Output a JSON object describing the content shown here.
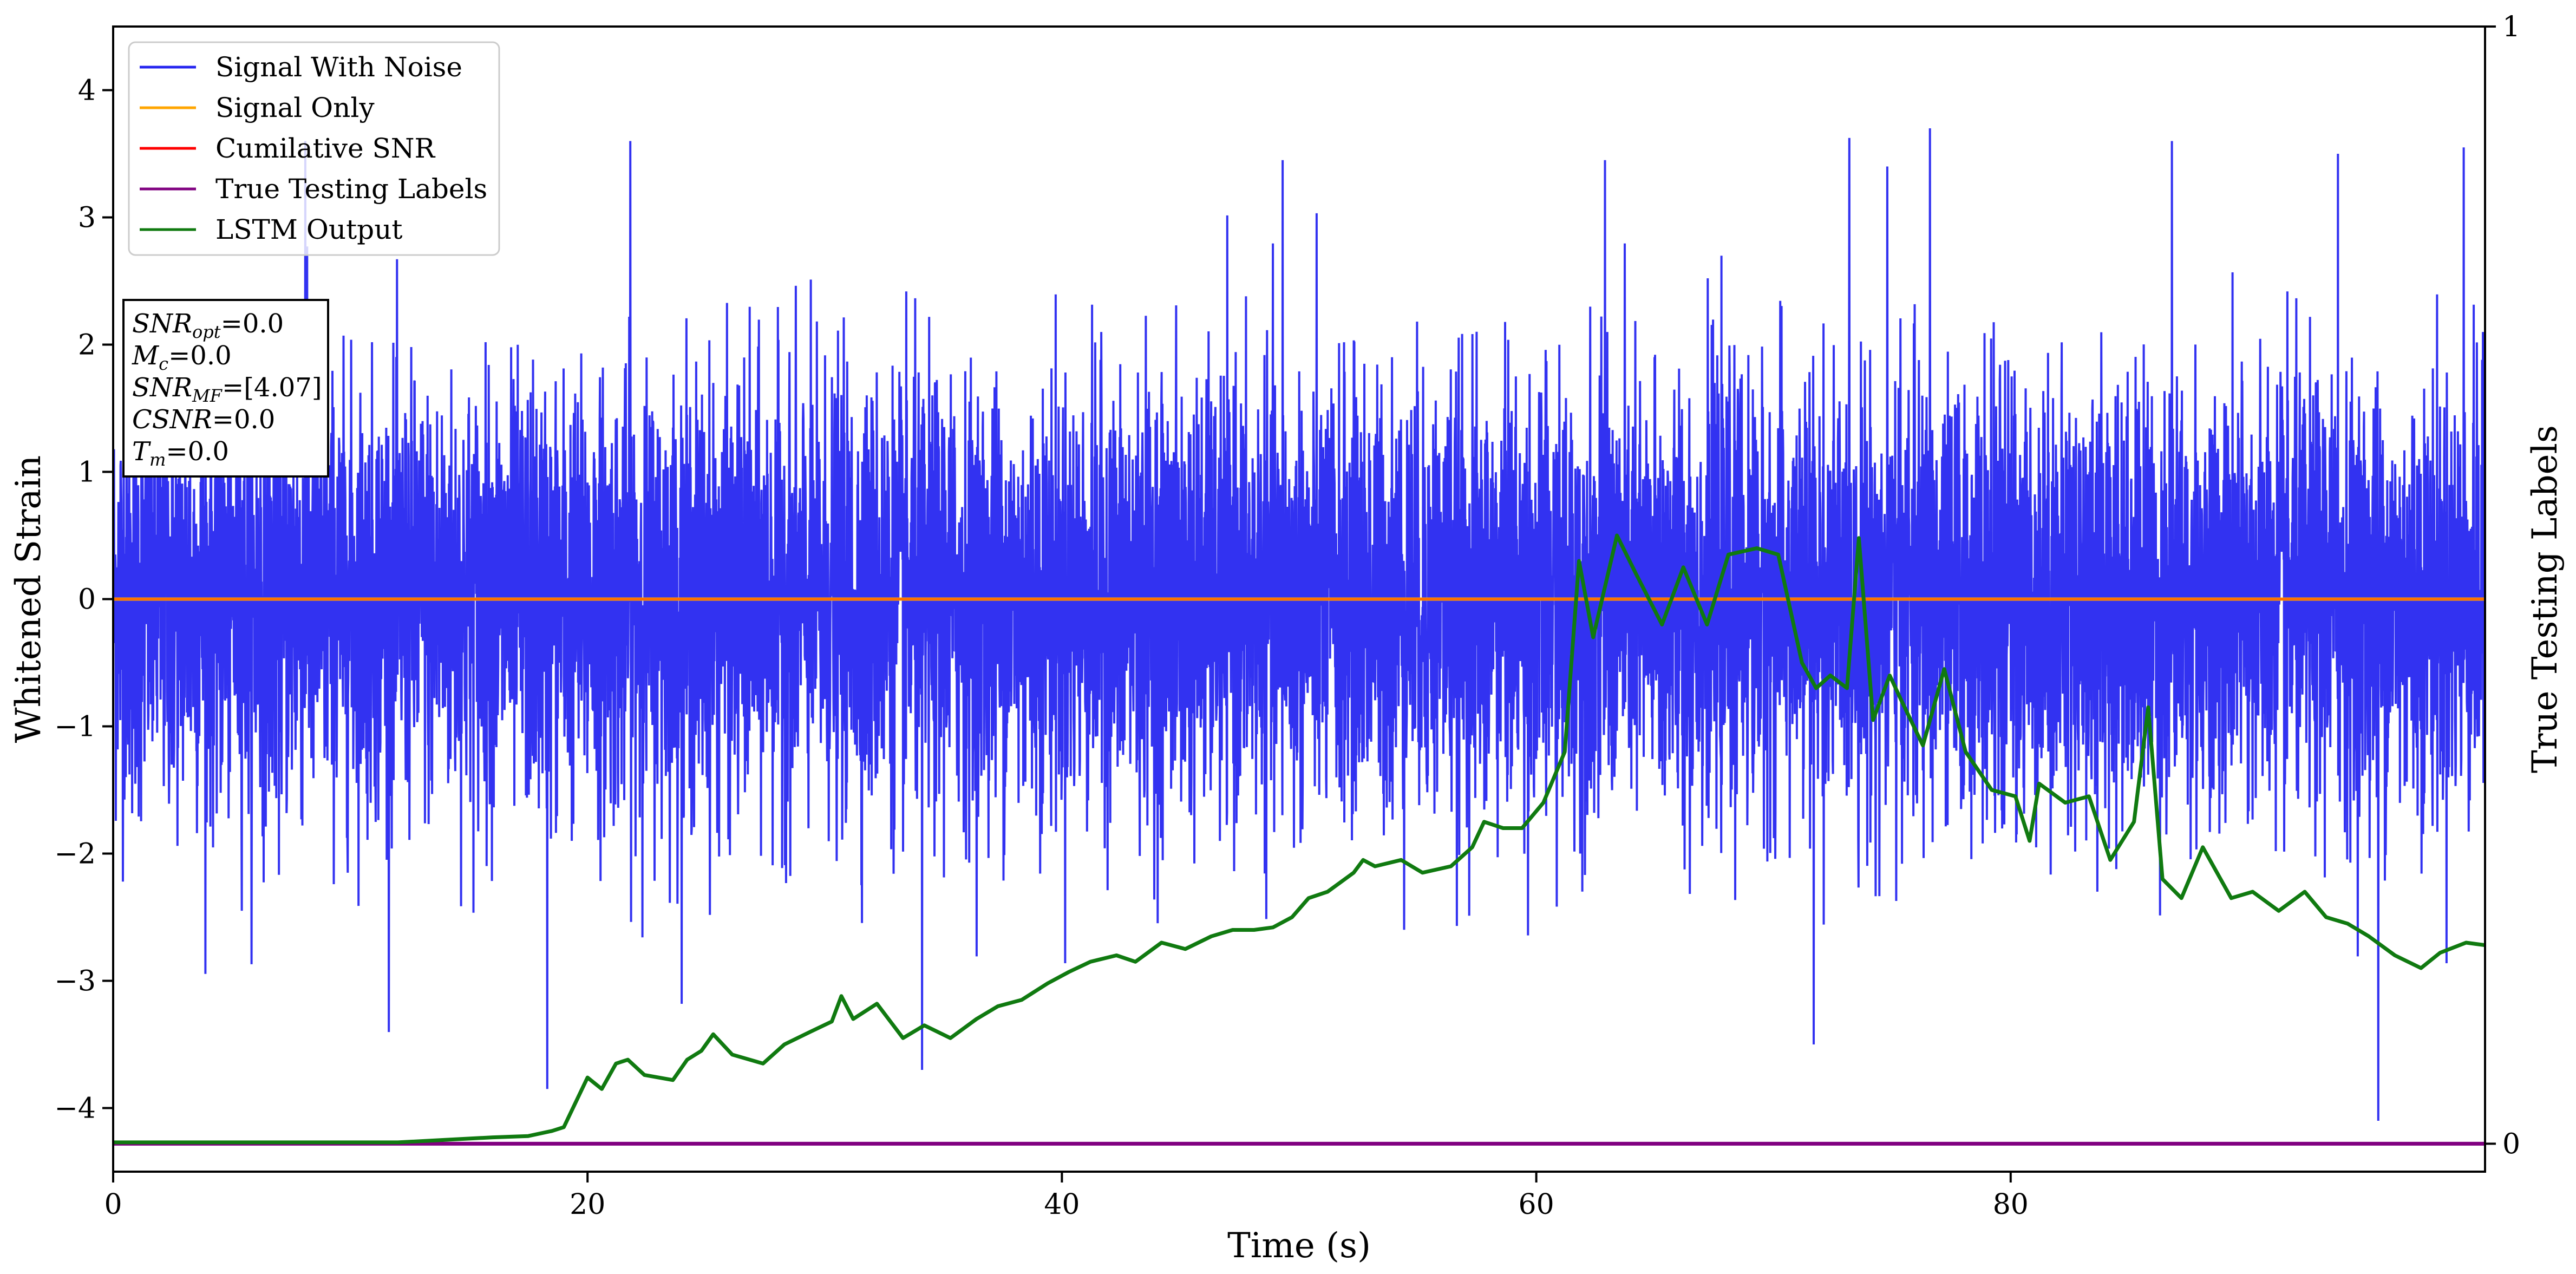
{
  "chart_data": {
    "type": "line",
    "xlabel": "Time (s)",
    "ylabel": "Whitened Strain",
    "y2label": "True Testing Labels",
    "xlim": [
      0,
      100
    ],
    "ylim": [
      -4.5,
      4.5
    ],
    "y2lim": [
      -0.025,
      1.0
    ],
    "xticks": [
      "0",
      "20",
      "40",
      "60",
      "80"
    ],
    "xtick_values": [
      0,
      20,
      40,
      60,
      80
    ],
    "yticks": [
      "4",
      "3",
      "2",
      "1",
      "0",
      "−1",
      "−2",
      "−3",
      "−4"
    ],
    "ytick_values": [
      4,
      3,
      2,
      1,
      0,
      -1,
      -2,
      -3,
      -4
    ],
    "y2ticks": [
      "1",
      "0"
    ],
    "y2tick_values": [
      1,
      0
    ],
    "grid": false,
    "legend_placement": "top-left",
    "colors": {
      "signal_with_noise": "#2727f0",
      "signal_only": "#ffa500",
      "cumulative_snr": "#ff0000",
      "true_testing_labels": "#800080",
      "lstm_output": "#107a10"
    },
    "series": [
      {
        "name": "Signal With Noise",
        "note_style": "dense noise",
        "noise_band": [
          -2.2,
          2.2
        ],
        "noise_extremes": [
          -4.1,
          3.7
        ],
        "visible_peaks": [
          [
            8.1,
            3.6
          ],
          [
            21.8,
            3.6
          ],
          [
            49.3,
            3.45
          ],
          [
            62.9,
            3.45
          ],
          [
            74.8,
            3.4
          ],
          [
            76.6,
            3.7
          ],
          [
            86.8,
            3.6
          ],
          [
            93.8,
            3.5
          ],
          [
            99.1,
            3.55
          ]
        ],
        "visible_troughs": [
          [
            18.3,
            -3.85
          ],
          [
            34.1,
            -3.7
          ],
          [
            71.7,
            -3.5
          ],
          [
            95.5,
            -4.1
          ]
        ]
      },
      {
        "name": "Signal Only",
        "x": [
          0,
          100
        ],
        "values": [
          0,
          0
        ]
      },
      {
        "name": "Cumilative SNR",
        "x": [
          0,
          100
        ],
        "values": [
          0,
          0
        ]
      },
      {
        "name": "True Testing Labels",
        "axis": "right",
        "x": [
          0,
          100
        ],
        "values": [
          0,
          0
        ]
      },
      {
        "name": "LSTM Output",
        "axis": "left",
        "x": [
          0,
          12,
          14,
          16,
          17.5,
          18.5,
          19,
          20,
          20.6,
          21.2,
          21.7,
          22.4,
          23.6,
          24.2,
          24.8,
          25.3,
          26.1,
          27.4,
          28.3,
          29.4,
          30.3,
          30.7,
          31.2,
          32.2,
          33.3,
          34.2,
          35.3,
          36.4,
          37.3,
          38.3,
          39.4,
          40.3,
          41.2,
          42.3,
          43.1,
          44.2,
          45.2,
          46.3,
          47.2,
          48.1,
          48.9,
          49.7,
          50.4,
          51.2,
          52.3,
          52.7,
          53.2,
          54.3,
          55.2,
          56.4,
          57.3,
          57.8,
          58.6,
          59.4,
          60.3,
          61.2,
          61.8,
          62.4,
          63.4,
          64.2,
          65.3,
          66.2,
          67.2,
          68.1,
          69.3,
          70.2,
          71.2,
          71.8,
          72.4,
          73.1,
          73.6,
          74.2,
          74.9,
          75.4,
          76.3,
          77.2,
          78.1,
          79.2,
          80.2,
          80.8,
          81.2,
          82.3,
          83.3,
          84.2,
          85.2,
          85.8,
          86.4,
          87.2,
          88.1,
          89.3,
          90.2,
          91.3,
          92.4,
          93.3,
          94.2,
          95.1,
          96.2,
          97.3,
          98.1,
          99.2,
          100
        ],
        "values": [
          -4.27,
          -4.27,
          -4.25,
          -4.23,
          -4.22,
          -4.18,
          -4.15,
          -3.76,
          -3.85,
          -3.65,
          -3.62,
          -3.74,
          -3.78,
          -3.62,
          -3.55,
          -3.42,
          -3.58,
          -3.65,
          -3.5,
          -3.4,
          -3.32,
          -3.12,
          -3.3,
          -3.18,
          -3.45,
          -3.35,
          -3.45,
          -3.3,
          -3.2,
          -3.15,
          -3.02,
          -2.93,
          -2.85,
          -2.8,
          -2.85,
          -2.7,
          -2.75,
          -2.65,
          -2.6,
          -2.6,
          -2.58,
          -2.5,
          -2.35,
          -2.3,
          -2.15,
          -2.05,
          -2.1,
          -2.05,
          -2.15,
          -2.1,
          -1.95,
          -1.75,
          -1.8,
          -1.8,
          -1.6,
          -1.2,
          0.3,
          -0.3,
          0.5,
          0.2,
          -0.2,
          0.25,
          -0.2,
          0.35,
          0.4,
          0.35,
          -0.5,
          -0.7,
          -0.6,
          -0.7,
          0.48,
          -0.95,
          -0.6,
          -0.8,
          -1.15,
          -0.55,
          -1.2,
          -1.5,
          -1.55,
          -1.9,
          -1.45,
          -1.6,
          -1.55,
          -2.05,
          -1.75,
          -0.85,
          -2.2,
          -2.35,
          -1.95,
          -2.35,
          -2.3,
          -2.45,
          -2.3,
          -2.5,
          -2.55,
          -2.65,
          -2.8,
          -2.9,
          -2.78,
          -2.7,
          -2.72
        ]
      }
    ],
    "annotation": {
      "lines": [
        {
          "label": "SNR",
          "sub": "opt",
          "value": "=0.0"
        },
        {
          "label": "M",
          "sub": "c",
          "value": "=0.0"
        },
        {
          "label": "SNR",
          "sub": "MF",
          "value": "=[4.07]"
        },
        {
          "label": "CSNR",
          "sub": "",
          "value": "=0.0"
        },
        {
          "label": "T",
          "sub": "m",
          "value": "=0.0"
        }
      ]
    }
  }
}
